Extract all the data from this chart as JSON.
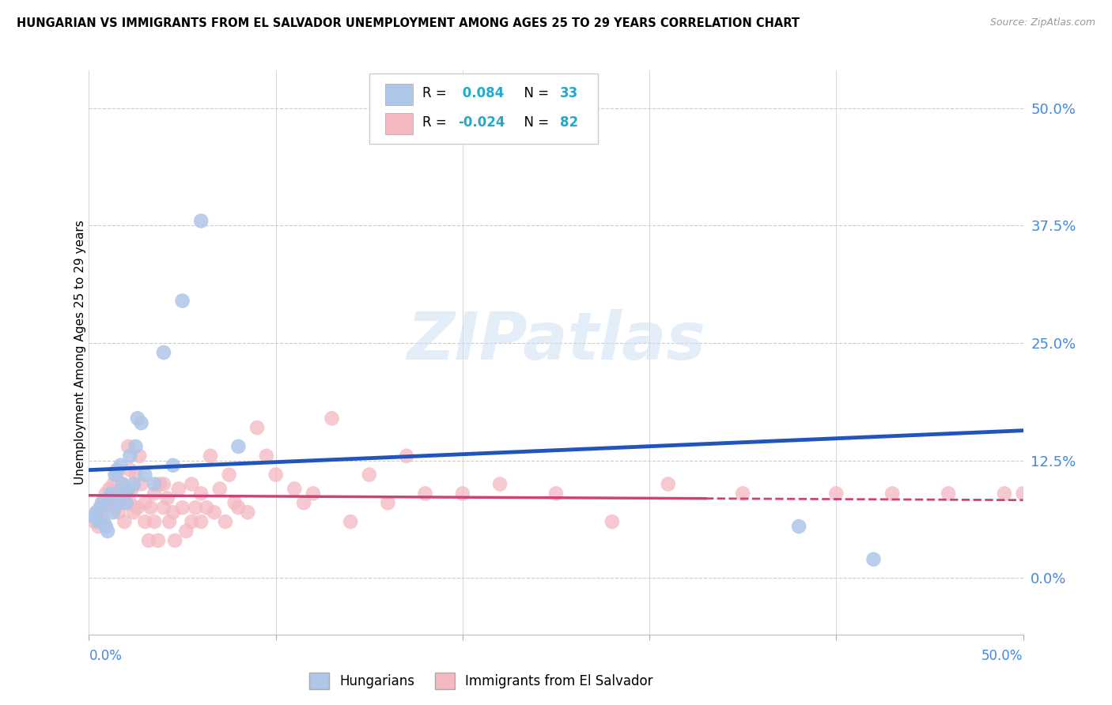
{
  "title": "HUNGARIAN VS IMMIGRANTS FROM EL SALVADOR UNEMPLOYMENT AMONG AGES 25 TO 29 YEARS CORRELATION CHART",
  "source": "Source: ZipAtlas.com",
  "ylabel": "Unemployment Among Ages 25 to 29 years",
  "ytick_values": [
    0.0,
    0.125,
    0.25,
    0.375,
    0.5
  ],
  "xlim": [
    0.0,
    0.5
  ],
  "ylim": [
    -0.06,
    0.54
  ],
  "watermark": "ZIPatlas",
  "legend1_color": "#aec6e8",
  "legend2_color": "#f4b8c1",
  "line1_color": "#2255bb",
  "line2_color": "#cc4477",
  "hungarian_x": [
    0.003,
    0.004,
    0.005,
    0.006,
    0.007,
    0.008,
    0.009,
    0.01,
    0.011,
    0.012,
    0.013,
    0.014,
    0.015,
    0.016,
    0.017,
    0.018,
    0.019,
    0.02,
    0.021,
    0.022,
    0.024,
    0.025,
    0.026,
    0.028,
    0.03,
    0.035,
    0.04,
    0.045,
    0.05,
    0.06,
    0.08,
    0.38,
    0.42
  ],
  "hungarian_y": [
    0.065,
    0.07,
    0.06,
    0.075,
    0.08,
    0.06,
    0.055,
    0.05,
    0.085,
    0.09,
    0.07,
    0.11,
    0.115,
    0.08,
    0.12,
    0.1,
    0.09,
    0.08,
    0.095,
    0.13,
    0.1,
    0.14,
    0.17,
    0.165,
    0.11,
    0.1,
    0.24,
    0.12,
    0.295,
    0.38,
    0.14,
    0.055,
    0.02
  ],
  "salvador_x": [
    0.003,
    0.004,
    0.005,
    0.006,
    0.007,
    0.008,
    0.009,
    0.01,
    0.011,
    0.012,
    0.013,
    0.014,
    0.015,
    0.016,
    0.016,
    0.017,
    0.018,
    0.019,
    0.02,
    0.021,
    0.022,
    0.022,
    0.023,
    0.024,
    0.025,
    0.026,
    0.027,
    0.028,
    0.03,
    0.03,
    0.032,
    0.033,
    0.035,
    0.035,
    0.037,
    0.038,
    0.04,
    0.04,
    0.042,
    0.043,
    0.045,
    0.046,
    0.048,
    0.05,
    0.052,
    0.055,
    0.055,
    0.057,
    0.06,
    0.06,
    0.063,
    0.065,
    0.067,
    0.07,
    0.073,
    0.075,
    0.078,
    0.08,
    0.085,
    0.09,
    0.095,
    0.1,
    0.11,
    0.115,
    0.12,
    0.13,
    0.14,
    0.15,
    0.16,
    0.17,
    0.18,
    0.2,
    0.22,
    0.25,
    0.28,
    0.31,
    0.35,
    0.4,
    0.43,
    0.46,
    0.49,
    0.5
  ],
  "salvador_y": [
    0.06,
    0.07,
    0.055,
    0.065,
    0.08,
    0.075,
    0.09,
    0.085,
    0.095,
    0.08,
    0.1,
    0.075,
    0.11,
    0.09,
    0.07,
    0.08,
    0.1,
    0.06,
    0.09,
    0.14,
    0.08,
    0.115,
    0.095,
    0.07,
    0.11,
    0.075,
    0.13,
    0.1,
    0.08,
    0.06,
    0.04,
    0.075,
    0.09,
    0.06,
    0.04,
    0.1,
    0.075,
    0.1,
    0.085,
    0.06,
    0.07,
    0.04,
    0.095,
    0.075,
    0.05,
    0.1,
    0.06,
    0.075,
    0.09,
    0.06,
    0.075,
    0.13,
    0.07,
    0.095,
    0.06,
    0.11,
    0.08,
    0.075,
    0.07,
    0.16,
    0.13,
    0.11,
    0.095,
    0.08,
    0.09,
    0.17,
    0.06,
    0.11,
    0.08,
    0.13,
    0.09,
    0.09,
    0.1,
    0.09,
    0.06,
    0.1,
    0.09,
    0.09,
    0.09,
    0.09,
    0.09,
    0.09
  ],
  "h_line_x0": 0.0,
  "h_line_x1": 0.5,
  "h_line_y0": 0.115,
  "h_line_y1": 0.157,
  "s_line_x0": 0.0,
  "s_line_x1": 0.5,
  "s_line_y0": 0.088,
  "s_line_y1": 0.083,
  "s_line_solid_end": 0.33
}
